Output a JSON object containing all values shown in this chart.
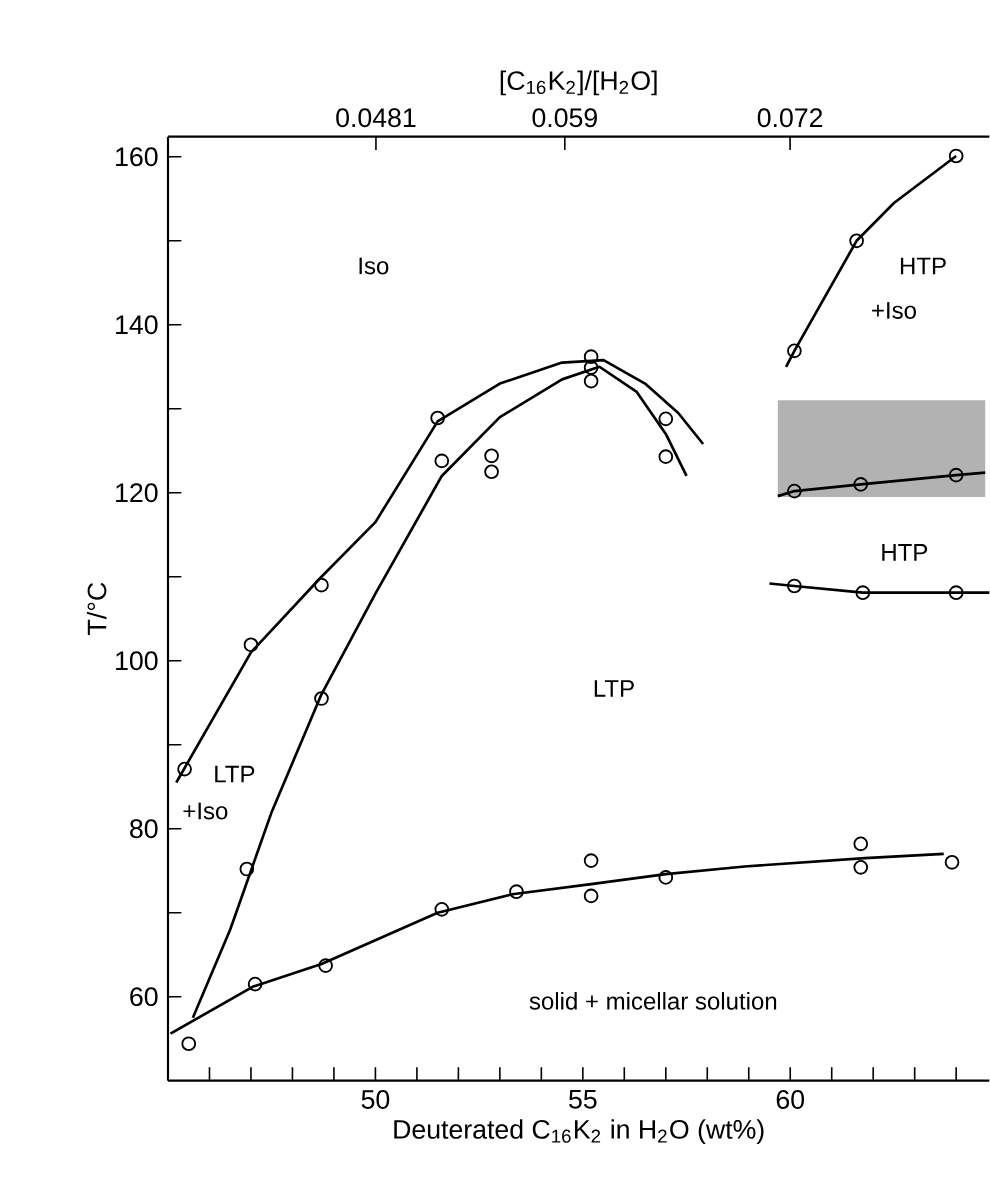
{
  "chart_data": {
    "type": "scatter",
    "xlabel": "Deuterated C$_{16}$K$_{2}$ in H$_{2}$O (wt%)",
    "ylabel": "T/°C",
    "x2label": "[C$_{16}$K$_{2}$]/[H$_{2}$O]",
    "xlim": [
      45,
      64.8
    ],
    "ylim": [
      50,
      162.4
    ],
    "xticks": [
      {
        "value": 46,
        "label": null
      },
      {
        "value": 47,
        "label": null
      },
      {
        "value": 48,
        "label": null
      },
      {
        "value": 49,
        "label": null
      },
      50,
      {
        "value": 51,
        "label": null
      },
      {
        "value": 52,
        "label": null
      },
      {
        "value": 53,
        "label": null
      },
      {
        "value": 54,
        "label": null
      },
      55,
      {
        "value": 56,
        "label": null
      },
      {
        "value": 57,
        "label": null
      },
      {
        "value": 58,
        "label": null
      },
      {
        "value": 59,
        "label": null
      },
      60,
      {
        "value": 61,
        "label": null
      },
      {
        "value": 62,
        "label": null
      },
      {
        "value": 63,
        "label": null
      },
      {
        "value": 64,
        "label": null
      }
    ],
    "x2lim": [
      0.0361,
      0.0835
    ],
    "x2ticks": [
      0.0481,
      0.059,
      0.072
    ],
    "yticks": [
      60,
      {
        "value": 70,
        "label": null
      },
      80,
      {
        "value": 90,
        "label": null
      },
      100,
      {
        "value": 110,
        "label": null
      },
      120,
      {
        "value": 130,
        "label": null
      },
      140,
      {
        "value": 150,
        "label": null
      },
      160
    ],
    "grid": false,
    "series": [
      {
        "color": "#000000",
        "marker": "circle",
        "x": [
          45.4,
          47.0,
          48.7,
          51.5,
          55.2,
          46.9,
          48.7,
          51.6,
          52.8,
          52.8,
          55.2,
          55.2,
          57.0,
          57.0,
          45.5,
          47.1,
          48.8,
          51.6,
          53.4,
          55.2,
          55.2,
          57.0,
          61.7,
          61.7,
          63.9,
          60.1,
          61.6,
          64.0,
          60.1,
          61.7,
          64.0,
          60.1,
          61.75,
          64.0
        ],
        "values": [
          87.1,
          101.9,
          109,
          128.9,
          136.2,
          75.2,
          95.5,
          123.8,
          124.4,
          122.5,
          134.9,
          133.3,
          128.8,
          124.3,
          54.4,
          61.5,
          63.7,
          70.4,
          72.5,
          76.2,
          72,
          74.2,
          78.2,
          75.4,
          76,
          136.9,
          150,
          160.1,
          120.2,
          121,
          122.1,
          108.9,
          108.1,
          108.1
        ]
      },
      {
        "type": "line",
        "color": "#000000",
        "marker": "none",
        "line_style": "solid",
        "x": [
          45.2,
          47,
          48.7,
          50,
          51.5,
          53,
          54.5,
          55.5,
          56.5,
          57.3,
          57.9
        ],
        "values": [
          85.5,
          101,
          110,
          116.5,
          128.5,
          133,
          135.5,
          135.8,
          133,
          129.5,
          125.8
        ]
      },
      {
        "type": "line",
        "color": "#000000",
        "marker": "none",
        "line_style": "solid",
        "x": [
          45.6,
          46.5,
          47.5,
          48.7,
          50,
          51.6,
          53,
          54.5,
          55.4,
          56.3,
          57.0,
          57.5
        ],
        "values": [
          57.5,
          68,
          82,
          96,
          108,
          122,
          129,
          133.5,
          135,
          132,
          127,
          122
        ]
      },
      {
        "type": "line",
        "color": "#000000",
        "marker": "none",
        "line_style": "solid",
        "x": [
          45.06,
          47.05,
          48.7,
          51.5,
          53.3,
          55.2,
          57,
          58.9,
          61.8,
          63.7
        ],
        "values": [
          55.6,
          61.2,
          63.9,
          70,
          72.2,
          73.4,
          74.6,
          75.5,
          76.5,
          77
        ]
      },
      {
        "type": "line",
        "color": "#000000",
        "marker": "none",
        "line_style": "solid",
        "x": [
          59.9,
          60.1,
          61.6,
          62.5,
          64.0
        ],
        "values": [
          135,
          136.9,
          150,
          154.5,
          160.1
        ]
      },
      {
        "type": "line",
        "color": "#000000",
        "marker": "none",
        "line_style": "solid",
        "x": [
          59.7,
          60.1,
          61.7,
          64.0,
          64.7
        ],
        "values": [
          119.6,
          120.2,
          121,
          122.1,
          122.4
        ],
        "lower": [
          119.5,
          119.5,
          119.5,
          119.5,
          119.5
        ],
        "upper": [
          131,
          131,
          131,
          131,
          131
        ]
      },
      {
        "type": "line",
        "color": "#000000",
        "marker": "none",
        "line_style": "solid",
        "x": [
          59.5,
          60.1,
          61.75,
          64.0,
          64.8
        ],
        "values": [
          109.2,
          108.9,
          108.1,
          108.1,
          108.1
        ]
      }
    ],
    "annotations": [
      "Iso",
      "HTP",
      "+Iso",
      "LTP",
      "LTP",
      "+Iso",
      "HTP",
      "solid + micellar solution"
    ]
  }
}
